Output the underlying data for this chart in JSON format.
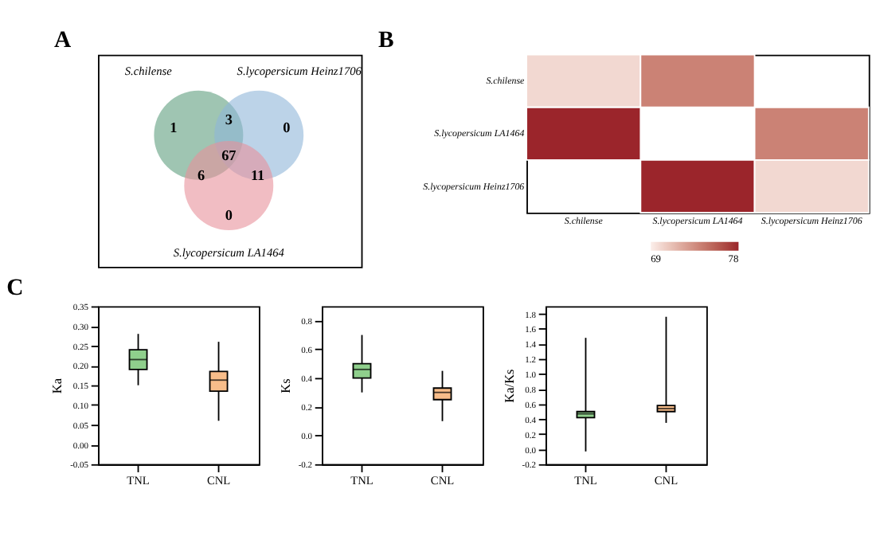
{
  "chart_data": [
    {
      "type": "other",
      "title": "A",
      "categories": [
        "S.chilense",
        "S.lycopersicum Heinz1706",
        "S.lycopersicum LA1464"
      ],
      "colors": [
        "#5f9e7f",
        "#8fb6d8",
        "#e8919b"
      ],
      "annotations": [
        "1",
        "0",
        "0",
        "3",
        "6",
        "11",
        "67"
      ]
    },
    {
      "type": "heatmap",
      "title": "B",
      "categories": [
        "S.chilense",
        "S.lycopersicum LA1464",
        "S.lycopersicum Heinz1706"
      ],
      "y_categories": [
        "S.chilense",
        "S.lycopersicum LA1464",
        "S.lycopersicum Heinz1706"
      ],
      "cells": [
        [
          70,
          74,
          null
        ],
        [
          78,
          null,
          74
        ],
        [
          null,
          78,
          70
        ]
      ],
      "clim": [
        69,
        78
      ],
      "cticks": [
        69,
        78
      ],
      "colors": [
        "#fbeeea",
        "#9b252b"
      ]
    },
    {
      "type": "box",
      "title": "C",
      "categories": [
        "TNL",
        "CNL"
      ],
      "colors": [
        "#8fcf8c",
        "#f8bd8a"
      ],
      "ylabel": "Ka",
      "ylim": [
        -0.05,
        0.35
      ],
      "yticks": [
        -0.05,
        {
          "value": 0,
          "label": "0.00"
        },
        0.05,
        {
          "value": 0.1,
          "label": "0.10"
        },
        0.15,
        {
          "value": 0.2,
          "label": "0.20"
        },
        0.25,
        {
          "value": 0.3,
          "label": "0.30"
        },
        0.35
      ],
      "boxes": [
        {
          "low": 0.15,
          "q1": 0.19,
          "median": 0.215,
          "q3": 0.24,
          "high": 0.28
        },
        {
          "low": 0.06,
          "q1": 0.135,
          "median": 0.163,
          "q3": 0.185,
          "high": 0.26
        }
      ]
    },
    {
      "type": "box",
      "categories": [
        "TNL",
        "CNL"
      ],
      "colors": [
        "#8fcf8c",
        "#f8bd8a"
      ],
      "ylabel": "Ks",
      "ylim": [
        -0.2,
        0.9
      ],
      "yticks": [
        -0.2,
        {
          "value": 0,
          "label": "0.0"
        },
        0.2,
        0.4,
        0.6,
        0.8
      ],
      "boxes": [
        {
          "low": 0.3,
          "q1": 0.4,
          "median": 0.46,
          "q3": 0.5,
          "high": 0.7
        },
        {
          "low": 0.1,
          "q1": 0.25,
          "median": 0.3,
          "q3": 0.33,
          "high": 0.45
        }
      ]
    },
    {
      "type": "box",
      "categories": [
        "TNL",
        "CNL"
      ],
      "colors": [
        "#8fcf8c",
        "#f8bd8a"
      ],
      "ylabel": "Ka/Ks",
      "ylim": [
        -0.2,
        1.9
      ],
      "yticks": [
        -0.2,
        {
          "value": 0,
          "label": "0.0"
        },
        0.2,
        0.4,
        0.6,
        0.8,
        {
          "value": 1,
          "label": "1.0"
        },
        1.2,
        1.4,
        1.6,
        1.8
      ],
      "boxes": [
        {
          "low": -0.03,
          "q1": 0.42,
          "median": 0.47,
          "q3": 0.5,
          "high": 1.48
        },
        {
          "low": 0.35,
          "q1": 0.5,
          "median": 0.54,
          "q3": 0.58,
          "high": 1.76
        }
      ]
    }
  ]
}
